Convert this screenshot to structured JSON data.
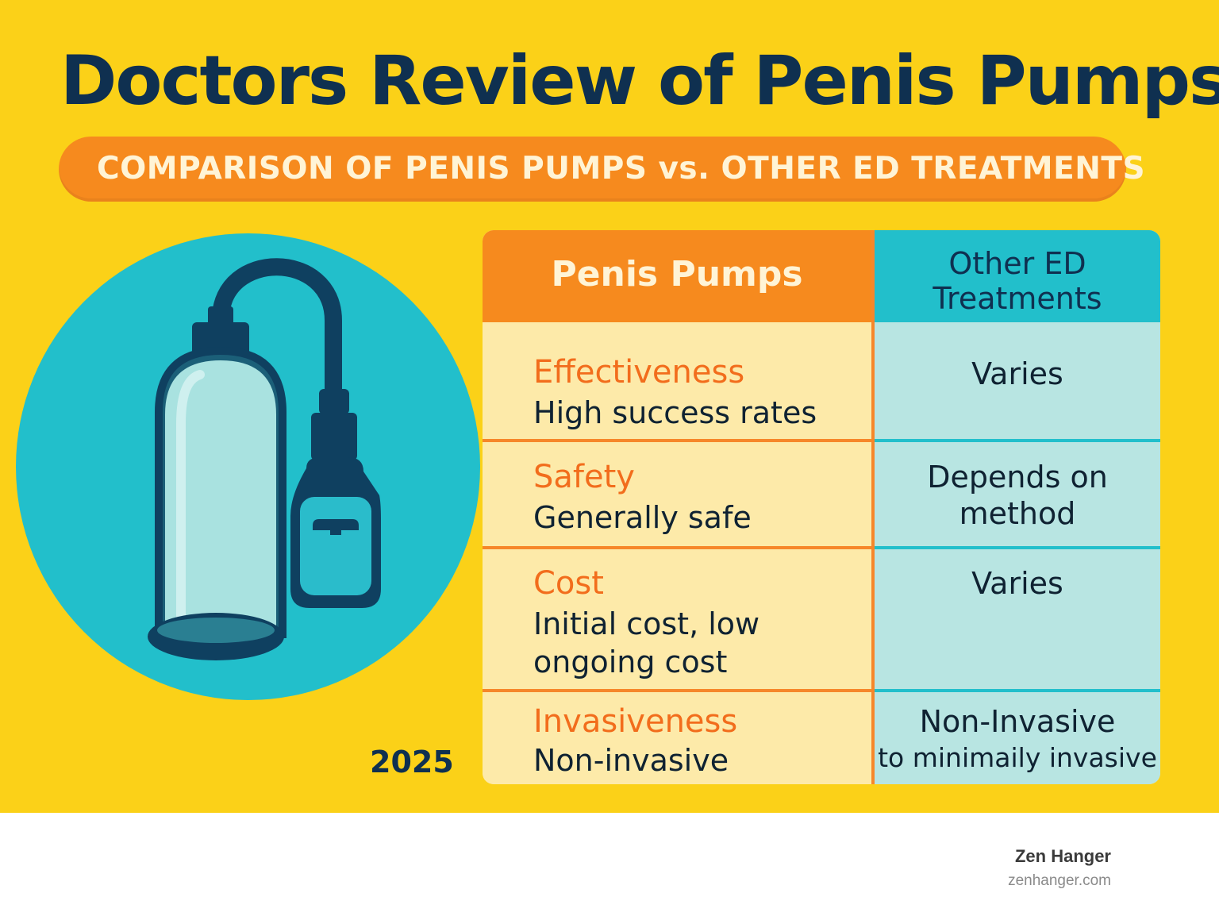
{
  "title": "Doctors Review of Penis Pumps",
  "subtitle": "COMPARISON OF PENIS PUMPS vs. OTHER ED TREATMENTS",
  "illustration": {
    "icon": "penis-pump-icon"
  },
  "year": "2025",
  "table": {
    "header_left": "Penis Pumps",
    "header_right_line1": "Other ED",
    "header_right_line2": "Treatments",
    "rows": [
      {
        "label": "Effectiveness",
        "pump_line1": "High success rates",
        "pump_line2": "",
        "other_line1": "Varies",
        "other_line2": ""
      },
      {
        "label": "Safety",
        "pump_line1": "Generally safe",
        "pump_line2": "",
        "other_line1": "Depends on",
        "other_line2": "method"
      },
      {
        "label": "Cost",
        "pump_line1": "Initial cost, low",
        "pump_line2": "ongoing cost",
        "other_line1": "Varies",
        "other_line2": ""
      },
      {
        "label": "Invasiveness",
        "pump_line1": "Non-invasive",
        "pump_line2": "",
        "other_line1": "Non-Invasive",
        "other_line2": "to minimaily invasive"
      }
    ]
  },
  "footer": {
    "brand": "Zen Hanger",
    "url": "zenhanger.com"
  },
  "colors": {
    "background": "#fbd118",
    "orange": "#f68a1e",
    "teal": "#22bfcb",
    "navy": "#0f3050"
  }
}
